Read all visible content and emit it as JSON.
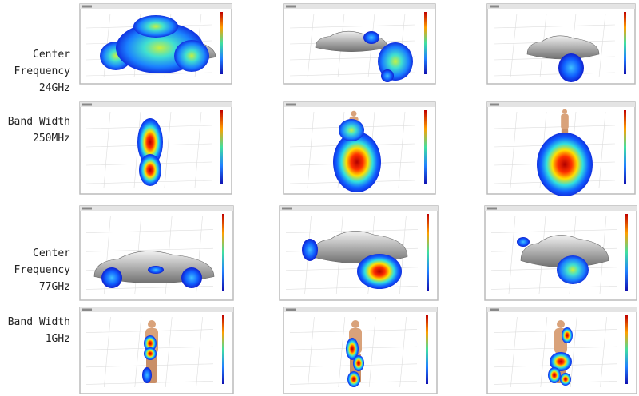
{
  "rows": [
    {
      "lines": [
        "Center",
        "Frequency",
        "24GHz"
      ]
    },
    {
      "lines": [
        "Band Width",
        "250MHz"
      ]
    },
    {
      "lines": [
        "Center",
        "Frequency",
        "77GHz"
      ]
    },
    {
      "lines": [
        "Band Width",
        "1GHz"
      ]
    }
  ]
}
